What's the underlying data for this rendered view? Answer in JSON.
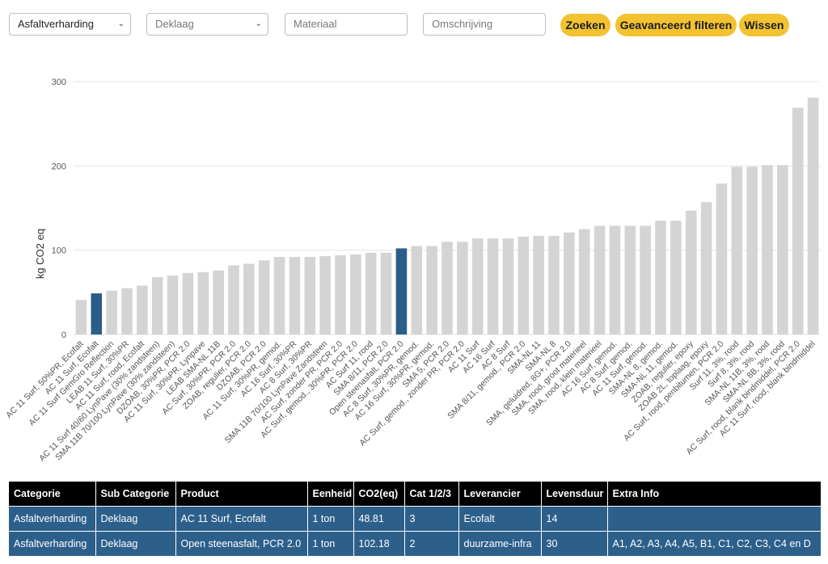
{
  "filters": {
    "category_select": "Asfaltverharding",
    "subcategory_select": "Deklaag",
    "material_placeholder": "Materiaal",
    "description_placeholder": "Omschrijving",
    "search_label": "Zoeken",
    "advanced_label": "Geavanceerd filteren",
    "clear_label": "Wissen"
  },
  "colors": {
    "bar": "#d4d4d4",
    "highlight": "#2a5e88",
    "button": "#f2c230",
    "table_header": "#000000",
    "table_row": "#2d5f8b"
  },
  "chart_data": {
    "type": "bar",
    "ylabel": "kg CO2 eq",
    "ylim": [
      0,
      300
    ],
    "yticks": [
      0,
      100,
      200,
      300
    ],
    "grid": true,
    "highlighted": [
      "AC 11 Surf, Ecofalt",
      "Open steenasfalt, PCR 2.0"
    ],
    "categories": [
      "AC 11 Surf, 50%PR, Ecofalt",
      "AC 11 Surf, Ecofalt",
      "AC 11 Surf GemGro Reflection",
      "LEAB 11 Surf, 30%PR",
      "AC 11 Surf, rood, Ecofalt",
      "AC 11 Surf 40/60 LynPave (30% zandsteen)",
      "SMA 11B 70/100 LynPave (30% zandsteen)",
      "DZOAB, 30%PR, PCR 2.0",
      "AC 11 Surf, 30%PR, Lynpave",
      "LEAB SMA-NL 11B",
      "AC Surf, 30%PR, PCR 2.0",
      "ZOAB, regulier, PCR 2.0",
      "DZOAB, PCR 2.0",
      "AC 11 Surf, 30%PR, gemod.",
      "AC 16 Surf, 30%PR",
      "AC 8 Surf, 30%PR",
      "SMA 11B 70/100 LynPave Zandsteen",
      "AC Surf, zonder PR, PCR 2.0",
      "AC Surf, gemod., 30%PR, PCR 2.0",
      "AC Surf 11, rood",
      "SMA 8/11, PCR 2.0",
      "Open steenasfalt, PCR 2.0",
      "AC 8 Surf, 30%PR, gemod.",
      "AC 16 Surf, 30%PR, gemod.",
      "SMA 5, PCR 2.0",
      "AC Surf, gemod., zonder PR, PCR 2.0",
      "AC 11 Surf",
      "AC 16 Surf",
      "AC 8 Surf",
      "SMA 8/11, gemod., PCR 2.0",
      "SMA-NL 11",
      "SMA-NL 8",
      "SMA, geluidred, 8G+, PCR 2.0",
      "SMA, rood, groot materieel",
      "SMA, rood, klein materieel",
      "AC 16 Surf, gemod.",
      "AC 8 Surf, gemod.",
      "AC 11 Surf, gemod.",
      "SMA-NL 8, gemod.",
      "SMA-NL 11, gemod.",
      "ZOAB, regulier, epoxy",
      "ZOAB 2L, toplaag, epoxy",
      "AC Surf, rood, penbitumen, PCR 2.0",
      "Surf 11, 3%, rood",
      "Surf 8, 3%, rood",
      "SMA-NL 11B, 3%, rood",
      "SMA-NL 8B, 3%, rood",
      "AC Surf, rood, blank bindmiddel, PCR 2.0",
      "AC 11 Surf, rood, blank bindmiddel"
    ],
    "values": [
      41,
      48.81,
      52,
      55,
      58,
      68,
      70,
      73,
      74,
      76,
      82,
      84,
      88,
      92,
      92,
      92,
      93,
      94,
      95,
      97,
      97,
      102.18,
      105,
      105,
      110,
      110,
      114,
      114,
      114,
      116,
      117,
      117,
      121,
      125,
      129,
      129,
      129,
      129,
      135,
      135,
      147,
      157,
      179,
      199,
      199,
      201,
      201,
      269,
      281
    ]
  },
  "table": {
    "headers": [
      "Categorie",
      "Sub Categorie",
      "Product",
      "Eenheid",
      "CO2(eq)",
      "Cat 1/2/3",
      "Leverancier",
      "Levensduur",
      "Extra Info"
    ],
    "rows": [
      [
        "Asfaltverharding",
        "Deklaag",
        "AC 11 Surf, Ecofalt",
        "1 ton",
        "48.81",
        "3",
        "Ecofalt",
        "14",
        ""
      ],
      [
        "Asfaltverharding",
        "Deklaag",
        "Open steenasfalt, PCR 2.0",
        "1 ton",
        "102.18",
        "2",
        "duurzame-infra",
        "30",
        "A1, A2, A3, A4, A5, B1, C1, C2, C3, C4 en D"
      ]
    ]
  }
}
